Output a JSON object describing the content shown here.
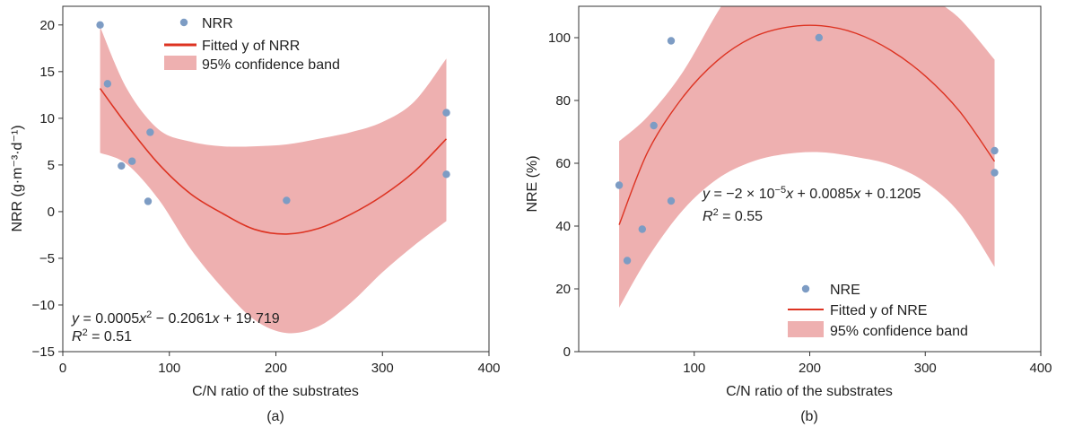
{
  "chart_data": [
    {
      "type": "scatter",
      "panel_label": "(a)",
      "xlabel": "C/N ratio of the substrates",
      "ylabel": "NRR (g·m⁻³·d⁻¹)",
      "xlim": [
        0,
        400
      ],
      "ylim": [
        -15,
        22
      ],
      "xticks": [
        0,
        100,
        200,
        300,
        400
      ],
      "yticks": [
        -15,
        -10,
        -5,
        0,
        5,
        10,
        15,
        20
      ],
      "grid": false,
      "legend_position": "top-center",
      "legend": [
        "NRR",
        "Fitted y of NRR",
        "95% confidence band"
      ],
      "points": {
        "name": "NRR",
        "x": [
          35,
          42,
          55,
          65,
          80,
          82,
          210,
          360,
          360
        ],
        "y": [
          20.0,
          13.7,
          4.9,
          5.4,
          1.1,
          8.5,
          1.2,
          10.6,
          4.0
        ]
      },
      "fit": {
        "name": "Fitted y of NRR",
        "x": [
          35,
          60,
          90,
          120,
          150,
          180,
          210,
          240,
          270,
          300,
          330,
          360
        ],
        "y": [
          13.2,
          9.3,
          5.1,
          1.9,
          -0.2,
          -1.9,
          -2.4,
          -1.8,
          -0.3,
          1.7,
          4.3,
          7.8
        ]
      },
      "band": {
        "name": "95% confidence band",
        "x": [
          35,
          60,
          90,
          120,
          150,
          180,
          210,
          240,
          270,
          300,
          330,
          360
        ],
        "upper": [
          19.8,
          13.2,
          8.8,
          7.5,
          7.0,
          7.0,
          7.2,
          7.8,
          8.5,
          9.6,
          11.8,
          16.4
        ],
        "lower": [
          6.3,
          5.1,
          1.3,
          -4.0,
          -8.2,
          -11.6,
          -13.0,
          -12.3,
          -9.8,
          -6.5,
          -3.6,
          -1.0
        ]
      },
      "colors": {
        "points": "#7d9cc4",
        "fit": "#dd3322",
        "band": "#eeb0b0"
      },
      "annotation": {
        "eq_parts": [
          "y",
          " = 0.0005",
          "x",
          "2",
          " − 0.2061",
          "x",
          " + 19.719"
        ],
        "r2_parts": [
          "R",
          "2",
          " = 0.51"
        ]
      }
    },
    {
      "type": "scatter",
      "panel_label": "(b)",
      "xlabel": "C/N ratio of the substrates",
      "ylabel": "NRE (%)",
      "xlim": [
        0,
        400
      ],
      "ylim": [
        0,
        110
      ],
      "xticks": [
        100,
        200,
        300,
        400
      ],
      "yticks": [
        0,
        20,
        40,
        60,
        80,
        100
      ],
      "grid": false,
      "legend_position": "bottom-center",
      "legend": [
        "NRE",
        "Fitted y of NRE",
        "95% confidence band"
      ],
      "points": {
        "name": "NRE",
        "x": [
          35,
          42,
          55,
          65,
          80,
          80,
          208,
          360,
          360
        ],
        "y": [
          53,
          29,
          39,
          72,
          99,
          48,
          100,
          64,
          57
        ]
      },
      "fit": {
        "name": "Fitted y of NRE",
        "x": [
          35,
          60,
          90,
          120,
          150,
          180,
          210,
          240,
          270,
          300,
          330,
          360
        ],
        "y": [
          40.4,
          63.8,
          81.0,
          92.7,
          100.0,
          103.3,
          103.8,
          101.4,
          96.0,
          87.8,
          76.4,
          60.6
        ]
      },
      "band": {
        "name": "95% confidence band",
        "x": [
          35,
          60,
          90,
          120,
          150,
          180,
          210,
          240,
          270,
          300,
          330,
          360
        ],
        "upper": [
          67.0,
          75.0,
          89.0,
          108.0,
          125.0,
          140.0,
          150.0,
          145.0,
          130.0,
          115.0,
          106.0,
          93.0
        ],
        "lower": [
          14.0,
          30.0,
          45.0,
          55.0,
          60.5,
          63.0,
          63.5,
          62.0,
          59.5,
          54.0,
          44.0,
          27.0
        ]
      },
      "colors": {
        "points": "#7d9cc4",
        "fit": "#dd3322",
        "band": "#eeb0b0"
      },
      "annotation": {
        "eq_parts": [
          "y",
          " = −2 × 10",
          "−5",
          "x",
          " + 0.0085",
          "x",
          " + 0.1205"
        ],
        "r2_parts": [
          "R",
          "2",
          " = 0.55"
        ]
      }
    }
  ]
}
